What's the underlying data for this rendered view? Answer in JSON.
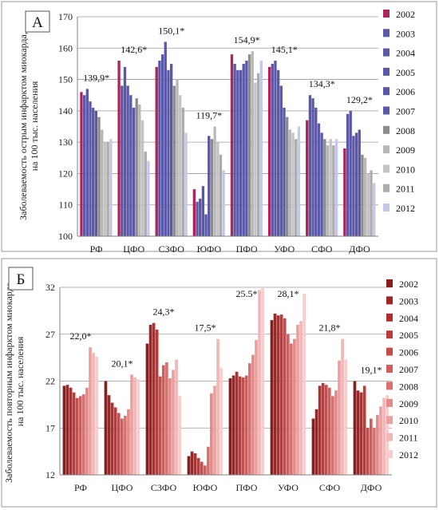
{
  "years": [
    "2002",
    "2003",
    "2004",
    "2005",
    "2006",
    "2007",
    "2008",
    "2009",
    "2010",
    "2011",
    "2012"
  ],
  "regions": [
    "РФ",
    "ЦФО",
    "СЗФО",
    "ЮФО",
    "ПФО",
    "УФО",
    "СФО",
    "ДФО"
  ],
  "chart_data": [
    {
      "type": "bar",
      "panel_label": "А",
      "ylabel": "Заболеваемость острым инфарктом миокарда, на 100 тыс. населения",
      "ylim": [
        100,
        170
      ],
      "yticks": [
        100,
        110,
        120,
        130,
        140,
        150,
        160,
        170
      ],
      "grid": true,
      "legend": "right",
      "categories": [
        "РФ",
        "ЦФО",
        "СЗФО",
        "ЮФО",
        "ПФО",
        "УФО",
        "СФО",
        "ДФО"
      ],
      "annotations": [
        "139,9*",
        "142,6*",
        "150,1*",
        "119,7*",
        "154,9*",
        "145,1*",
        "134,3*",
        "129,2*"
      ],
      "colors": [
        "#b0235a",
        "#5b58a8",
        "#5b58a8",
        "#5b58a8",
        "#5b58a8",
        "#5b58a8",
        "#8c8c8c",
        "#b8b8b8",
        "#c4c4c4",
        "#acacac",
        "#c6c6ee"
      ],
      "series": [
        {
          "name": "2002",
          "values": [
            146,
            156,
            154,
            115,
            158,
            154,
            137,
            128
          ]
        },
        {
          "name": "2003",
          "values": [
            145,
            148,
            156,
            111,
            155,
            155,
            145,
            139
          ]
        },
        {
          "name": "2004",
          "values": [
            147,
            154,
            158,
            112,
            153,
            156,
            144,
            140
          ]
        },
        {
          "name": "2005",
          "values": [
            143,
            148,
            162,
            116,
            153,
            153,
            141,
            132
          ]
        },
        {
          "name": "2006",
          "values": [
            141,
            145,
            153,
            107,
            155,
            148,
            136,
            133
          ]
        },
        {
          "name": "2007",
          "values": [
            140,
            141,
            155,
            132,
            156,
            141,
            133,
            134
          ]
        },
        {
          "name": "2008",
          "values": [
            138,
            144,
            148,
            131,
            158,
            138,
            131,
            126
          ]
        },
        {
          "name": "2009",
          "values": [
            134,
            142,
            150,
            135,
            159,
            134,
            129,
            125
          ]
        },
        {
          "name": "2010",
          "values": [
            130,
            137,
            145,
            130,
            149,
            133,
            131,
            120
          ]
        },
        {
          "name": "2011",
          "values": [
            130,
            127,
            141,
            126,
            152,
            131,
            129,
            121
          ]
        },
        {
          "name": "2012",
          "values": [
            131,
            124,
            133,
            121,
            156,
            135,
            131,
            117
          ]
        }
      ]
    },
    {
      "type": "bar",
      "panel_label": "Б",
      "ylabel": "Заболеваемость повторным инфарктом миокарда, на 100 тыс. населения",
      "ylim": [
        12,
        32
      ],
      "yticks": [
        12,
        17,
        22,
        27,
        32
      ],
      "grid": true,
      "legend": "right",
      "categories": [
        "РФ",
        "ЦФО",
        "СЗФО",
        "ЮФО",
        "ПФО",
        "УФО",
        "СФО",
        "ДФО"
      ],
      "annotations": [
        "22,0*",
        "20,1*",
        "24,3*",
        "17,5*",
        "25.5*",
        "28,1*",
        "21,8*",
        "19,1*"
      ],
      "colors": [
        "#8e1a1a",
        "#a12424",
        "#b02e2e",
        "#bc3a3a",
        "#c84a4a",
        "#d35c5c",
        "#dc7070",
        "#e48888",
        "#eb9f9f",
        "#f1b6b6",
        "#f7cdcd"
      ],
      "series": [
        {
          "name": "2002",
          "values": [
            21.5,
            22.0,
            26.0,
            14.0,
            22.3,
            28.5,
            18.0,
            22.0
          ]
        },
        {
          "name": "2003",
          "values": [
            21.6,
            20.5,
            28.0,
            14.5,
            22.6,
            29.2,
            19.0,
            21.0
          ]
        },
        {
          "name": "2004",
          "values": [
            21.3,
            19.7,
            28.2,
            14.3,
            23.0,
            29.0,
            21.5,
            20.8
          ]
        },
        {
          "name": "2005",
          "values": [
            20.8,
            19.2,
            27.5,
            13.8,
            22.5,
            29.1,
            21.8,
            21.5
          ]
        },
        {
          "name": "2006",
          "values": [
            20.2,
            18.6,
            22.5,
            13.4,
            22.4,
            28.7,
            21.6,
            17.0
          ]
        },
        {
          "name": "2007",
          "values": [
            20.4,
            18.0,
            23.7,
            13.0,
            22.6,
            27.0,
            21.3,
            18.0
          ]
        },
        {
          "name": "2008",
          "values": [
            20.6,
            18.3,
            24.0,
            15.0,
            23.9,
            26.0,
            20.4,
            17.0
          ]
        },
        {
          "name": "2009",
          "values": [
            21.3,
            19.0,
            22.3,
            20.7,
            24.8,
            26.5,
            21.0,
            18.4
          ]
        },
        {
          "name": "2010",
          "values": [
            25.6,
            22.7,
            23.2,
            21.5,
            26.4,
            28.0,
            24.2,
            19.3
          ]
        },
        {
          "name": "2011",
          "values": [
            25.0,
            22.4,
            24.3,
            26.5,
            31.7,
            28.4,
            26.5,
            20.2
          ]
        },
        {
          "name": "2012",
          "values": [
            24.6,
            22.2,
            20.4,
            23.4,
            32.1,
            31.3,
            24.3,
            20.5
          ]
        }
      ]
    }
  ]
}
